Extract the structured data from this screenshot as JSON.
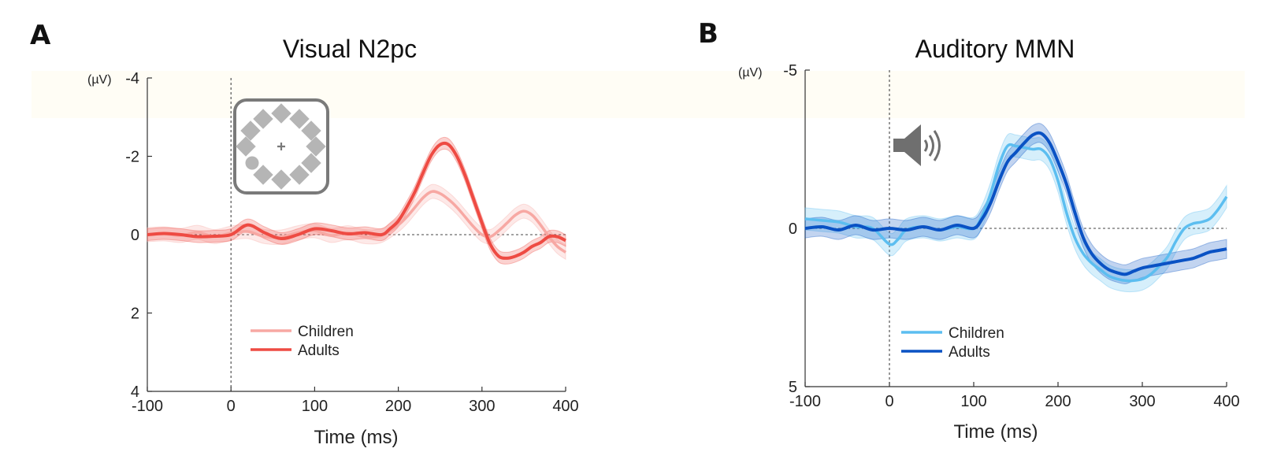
{
  "chart_data": [
    {
      "panel": "A",
      "type": "line",
      "title": "Visual N2pc",
      "xlabel": "Time (ms)",
      "ylabel": "",
      "yunit": "(µV)",
      "xlim": [
        -100,
        400
      ],
      "ylim": [
        -4,
        4
      ],
      "y_inverted": true,
      "xticks": [
        -100,
        0,
        100,
        200,
        300,
        400
      ],
      "yticks": [
        -4,
        -2,
        0,
        2,
        4
      ],
      "ytick_labels": [
        "-4",
        "-2",
        "0",
        "2",
        "4"
      ],
      "legend_position": "bottom-center",
      "inset_icon": "visual-search-array-icon",
      "series": [
        {
          "name": "Children",
          "color": "#f7a8a3",
          "band": 0.18,
          "x": [
            -100,
            -80,
            -60,
            -40,
            -20,
            0,
            20,
            40,
            60,
            80,
            100,
            120,
            140,
            160,
            180,
            200,
            210,
            220,
            230,
            240,
            250,
            260,
            270,
            280,
            290,
            300,
            310,
            320,
            330,
            340,
            350,
            360,
            370,
            380,
            390,
            400
          ],
          "y": [
            0,
            -0.02,
            0.02,
            -0.06,
            0.05,
            -0.04,
            -0.08,
            0.05,
            0.06,
            -0.05,
            -0.1,
            0.02,
            -0.05,
            0.05,
            0.02,
            -0.25,
            -0.45,
            -0.7,
            -0.95,
            -1.1,
            -1.05,
            -0.9,
            -0.7,
            -0.45,
            -0.2,
            0,
            0.05,
            -0.1,
            -0.3,
            -0.5,
            -0.6,
            -0.5,
            -0.25,
            0.05,
            0.3,
            0.45
          ]
        },
        {
          "name": "Adults",
          "color": "#ee4b43",
          "band": 0.15,
          "x": [
            -100,
            -80,
            -60,
            -40,
            -20,
            0,
            20,
            40,
            60,
            80,
            100,
            120,
            140,
            160,
            180,
            190,
            200,
            210,
            220,
            230,
            240,
            250,
            260,
            270,
            280,
            290,
            300,
            310,
            320,
            330,
            340,
            350,
            360,
            370,
            380,
            390,
            400
          ],
          "y": [
            0,
            -0.03,
            0,
            0.05,
            0.04,
            0,
            -0.25,
            -0.05,
            0.1,
            0,
            -0.15,
            -0.1,
            -0.02,
            -0.05,
            0,
            -0.15,
            -0.35,
            -0.7,
            -1.1,
            -1.6,
            -2.05,
            -2.3,
            -2.3,
            -2.0,
            -1.5,
            -0.9,
            -0.3,
            0.25,
            0.55,
            0.6,
            0.55,
            0.45,
            0.3,
            0.2,
            0.05,
            0.05,
            0.15
          ]
        }
      ]
    },
    {
      "panel": "B",
      "type": "line",
      "title": "Auditory MMN",
      "xlabel": "Time (ms)",
      "ylabel": "",
      "yunit": "(µV)",
      "xlim": [
        -100,
        400
      ],
      "ylim": [
        -5,
        5
      ],
      "y_inverted": true,
      "xticks": [
        -100,
        0,
        100,
        200,
        300,
        400
      ],
      "yticks": [
        -5,
        0,
        5
      ],
      "ytick_labels": [
        "-5",
        "0",
        "5"
      ],
      "legend_position": "bottom-left",
      "inset_icon": "speaker-icon",
      "series": [
        {
          "name": "Children",
          "color": "#5cbef0",
          "band": 0.35,
          "x": [
            -100,
            -80,
            -60,
            -40,
            -20,
            0,
            10,
            20,
            40,
            60,
            80,
            100,
            110,
            120,
            130,
            140,
            150,
            160,
            170,
            180,
            190,
            200,
            210,
            220,
            230,
            240,
            250,
            260,
            270,
            280,
            290,
            300,
            310,
            320,
            330,
            340,
            350,
            360,
            370,
            380,
            390,
            400
          ],
          "y": [
            -0.3,
            -0.25,
            -0.2,
            -0.05,
            0,
            0.5,
            0.35,
            0.05,
            -0.05,
            0.05,
            -0.05,
            0,
            -0.4,
            -1.1,
            -2.0,
            -2.6,
            -2.6,
            -2.55,
            -2.5,
            -2.5,
            -2.2,
            -1.5,
            -0.5,
            0.3,
            0.8,
            1.1,
            1.3,
            1.5,
            1.6,
            1.65,
            1.65,
            1.6,
            1.45,
            1.2,
            0.9,
            0.4,
            0,
            -0.15,
            -0.2,
            -0.3,
            -0.6,
            -1.0
          ]
        },
        {
          "name": "Adults",
          "color": "#0a52c4",
          "band": 0.3,
          "x": [
            -100,
            -80,
            -60,
            -40,
            -20,
            0,
            20,
            40,
            60,
            80,
            100,
            110,
            120,
            130,
            140,
            150,
            160,
            170,
            180,
            190,
            200,
            210,
            220,
            230,
            240,
            250,
            260,
            270,
            280,
            290,
            300,
            310,
            320,
            330,
            340,
            350,
            360,
            370,
            380,
            390,
            400
          ],
          "y": [
            0,
            -0.05,
            0.05,
            -0.1,
            0.05,
            0,
            0.05,
            -0.05,
            0.05,
            -0.1,
            0,
            -0.3,
            -0.8,
            -1.5,
            -2.1,
            -2.4,
            -2.7,
            -2.95,
            -3.0,
            -2.7,
            -2.1,
            -1.4,
            -0.5,
            0.3,
            0.8,
            1.1,
            1.3,
            1.4,
            1.45,
            1.35,
            1.25,
            1.2,
            1.15,
            1.1,
            1.05,
            1.0,
            0.95,
            0.85,
            0.75,
            0.7,
            0.65
          ]
        }
      ]
    }
  ],
  "panels": [
    {
      "letter": "A"
    },
    {
      "letter": "B"
    }
  ]
}
